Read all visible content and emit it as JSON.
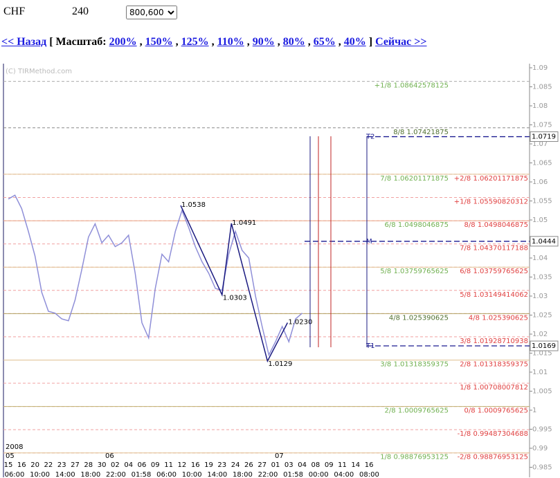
{
  "header": {
    "symbol": "CHF",
    "period": "240",
    "size": "800,600"
  },
  "nav": {
    "back": "<< Назад",
    "scale_label": "[ Масштаб:",
    "scales": [
      "200%",
      "150%",
      "125%",
      "110%",
      "90%",
      "80%",
      "65%",
      "40%"
    ],
    "separator": ",",
    "close": "]",
    "now": "Сейчас >>"
  },
  "chart_data": {
    "type": "line",
    "watermark": "(C) TIRMethod.com",
    "ylim": [
      0.98236,
      1.09109
    ],
    "yticks": [
      1.09,
      1.085,
      1.08,
      1.075,
      1.07,
      1.065,
      1.06,
      1.055,
      1.05,
      1.045,
      1.04,
      1.035,
      1.03,
      1.025,
      1.02,
      1.015,
      1.01,
      1.005,
      1,
      0.995,
      0.99,
      0.985
    ],
    "categories": [
      "15",
      "16",
      "20",
      "22",
      "23",
      "27",
      "28",
      "30",
      "02",
      "04",
      "06",
      "09",
      "11",
      "12",
      "16",
      "19",
      "23",
      "24",
      "26",
      "27",
      "01",
      "03",
      "04",
      "08",
      "09",
      "11",
      "14",
      "16"
    ],
    "times": [
      "06:00",
      "10:00",
      "14:00",
      "18:00",
      "22:00",
      "01:58",
      "06:00",
      "10:00",
      "14:00",
      "18:00",
      "22:00",
      "01:58",
      "00:00",
      "04:00",
      "08:00"
    ],
    "year": "2008",
    "months": [
      "05",
      "06",
      "07"
    ],
    "price": {
      "color": "#8f8fd8",
      "x": [
        0,
        0.5,
        1,
        1.5,
        2,
        2.5,
        3,
        3.5,
        4,
        4.5,
        5,
        5.5,
        6,
        6.5,
        7,
        7.5,
        8,
        8.5,
        9,
        9.5,
        10,
        10.5,
        11,
        11.5,
        12,
        12.5,
        13,
        13.5,
        14,
        14.5,
        15,
        15.5,
        16,
        16.5,
        17,
        17.5,
        18,
        18.5,
        19,
        19.5,
        20,
        20.5,
        21,
        21.5,
        22
      ],
      "values": [
        1.0555,
        1.0565,
        1.053,
        1.047,
        1.0405,
        1.031,
        1.026,
        1.0255,
        1.024,
        1.0235,
        1.029,
        1.037,
        1.0455,
        1.049,
        1.044,
        1.046,
        1.043,
        1.044,
        1.046,
        1.036,
        1.023,
        1.019,
        1.032,
        1.041,
        1.039,
        1.047,
        1.0525,
        1.048,
        1.043,
        1.039,
        1.036,
        1.032,
        1.0315,
        1.041,
        1.047,
        1.042,
        1.04,
        1.03,
        1.022,
        1.0145,
        1.018,
        1.022,
        1.018,
        1.024,
        1.0255
      ]
    },
    "zigzag": {
      "color": "#1a1a80",
      "x": [
        12.9,
        16.0,
        16.7,
        19.4,
        20.9
      ],
      "values": [
        1.0538,
        1.0303,
        1.0491,
        1.0129,
        1.023
      ],
      "value_labels": [
        "1.0538",
        "1.0303",
        "1.0491",
        "1.0129",
        "1.0230"
      ]
    },
    "levels_main": [
      {
        "name": "+1/8",
        "value": 1.08642578125,
        "color": "#aaaaaa",
        "text_color": "#70b050",
        "dashed": true
      },
      {
        "name": "8/8",
        "value": 1.07421875,
        "color": "#888888",
        "text_color": "#507030",
        "dashed": true
      },
      {
        "name": "7/8",
        "value": 1.06201171875,
        "color": "#e0c090",
        "text_color": "#70b050",
        "dashed": false
      },
      {
        "name": "6/8",
        "value": 1.0498046875,
        "color": "#e8a080",
        "text_color": "#70b050",
        "dashed": false
      },
      {
        "name": "5/8",
        "value": 1.03759765625,
        "color": "#e0c090",
        "text_color": "#70b050",
        "dashed": false
      },
      {
        "name": "4/8",
        "value": 1.025390625,
        "color": "#b0a060",
        "text_color": "#507030",
        "dashed": false
      },
      {
        "name": "3/8",
        "value": 1.01318359375,
        "color": "#e0c090",
        "text_color": "#70b050",
        "dashed": false
      },
      {
        "name": "2/8",
        "value": 1.0009765625,
        "color": "#c0b070",
        "text_color": "#70b050",
        "dashed": false
      },
      {
        "name": "1/8",
        "value": 0.98876953125,
        "color": "#e0c090",
        "text_color": "#70b050",
        "dashed": false
      }
    ],
    "levels_sub": {
      "color": "#f0a0a0",
      "text_color": "#e04040",
      "items": [
        {
          "name": "+2/8",
          "value": 1.06201171875
        },
        {
          "name": "+1/8",
          "value": 1.05590820312
        },
        {
          "name": "8/8",
          "value": 1.0498046875
        },
        {
          "name": "7/8",
          "value": 1.04370117188
        },
        {
          "name": "6/8",
          "value": 1.03759765625
        },
        {
          "name": "5/8",
          "value": 1.03149414062
        },
        {
          "name": "4/8",
          "value": 1.025390625
        },
        {
          "name": "3/8",
          "value": 1.01928710938
        },
        {
          "name": "2/8",
          "value": 1.01318359375
        },
        {
          "name": "1/8",
          "value": 1.00708007812
        },
        {
          "name": "0/8",
          "value": 1.0009765625
        },
        {
          "name": "-1/8",
          "value": 0.99487304688
        },
        {
          "name": "-2/8",
          "value": 0.98876953125
        }
      ]
    },
    "targets": {
      "color": "#1a1a90",
      "items": [
        {
          "name": "T2",
          "value": 1.0719
        },
        {
          "name": "M",
          "value": 1.0444
        },
        {
          "name": "T1",
          "value": 1.0169
        }
      ]
    }
  }
}
